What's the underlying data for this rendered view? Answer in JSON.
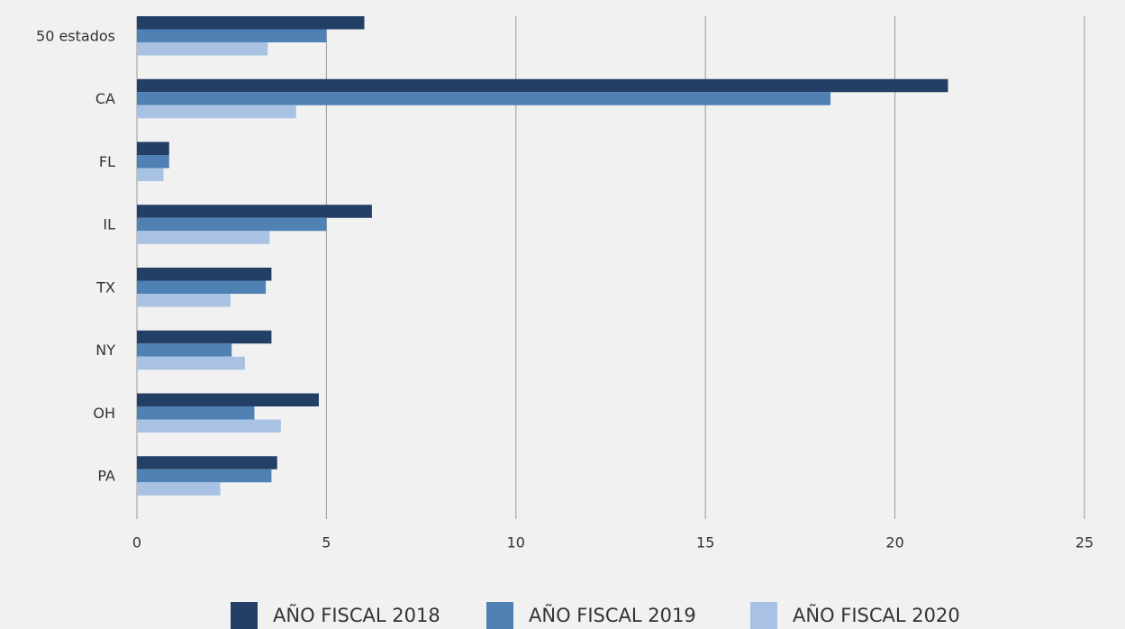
{
  "chart_data": {
    "type": "bar",
    "orientation": "horizontal",
    "categories": [
      "50 estados",
      "CA",
      "FL",
      "IL",
      "TX",
      "NY",
      "OH",
      "PA"
    ],
    "series": [
      {
        "name": "AÑO FISCAL 2018",
        "color": "#243f66",
        "values": [
          6.0,
          21.4,
          0.85,
          6.2,
          3.55,
          3.55,
          4.8,
          3.7
        ]
      },
      {
        "name": "AÑO FISCAL 2019",
        "color": "#4f81b4",
        "values": [
          5.0,
          18.3,
          0.85,
          5.0,
          3.4,
          2.5,
          3.1,
          3.55
        ]
      },
      {
        "name": "AÑO FISCAL 2020",
        "color": "#a9c2e3",
        "values": [
          3.45,
          4.2,
          0.7,
          3.5,
          2.47,
          2.85,
          3.8,
          2.2
        ]
      }
    ],
    "xlim": [
      0,
      25
    ],
    "xticks": [
      0,
      5,
      10,
      15,
      20,
      25
    ],
    "grid": true,
    "legend": "bottom"
  }
}
